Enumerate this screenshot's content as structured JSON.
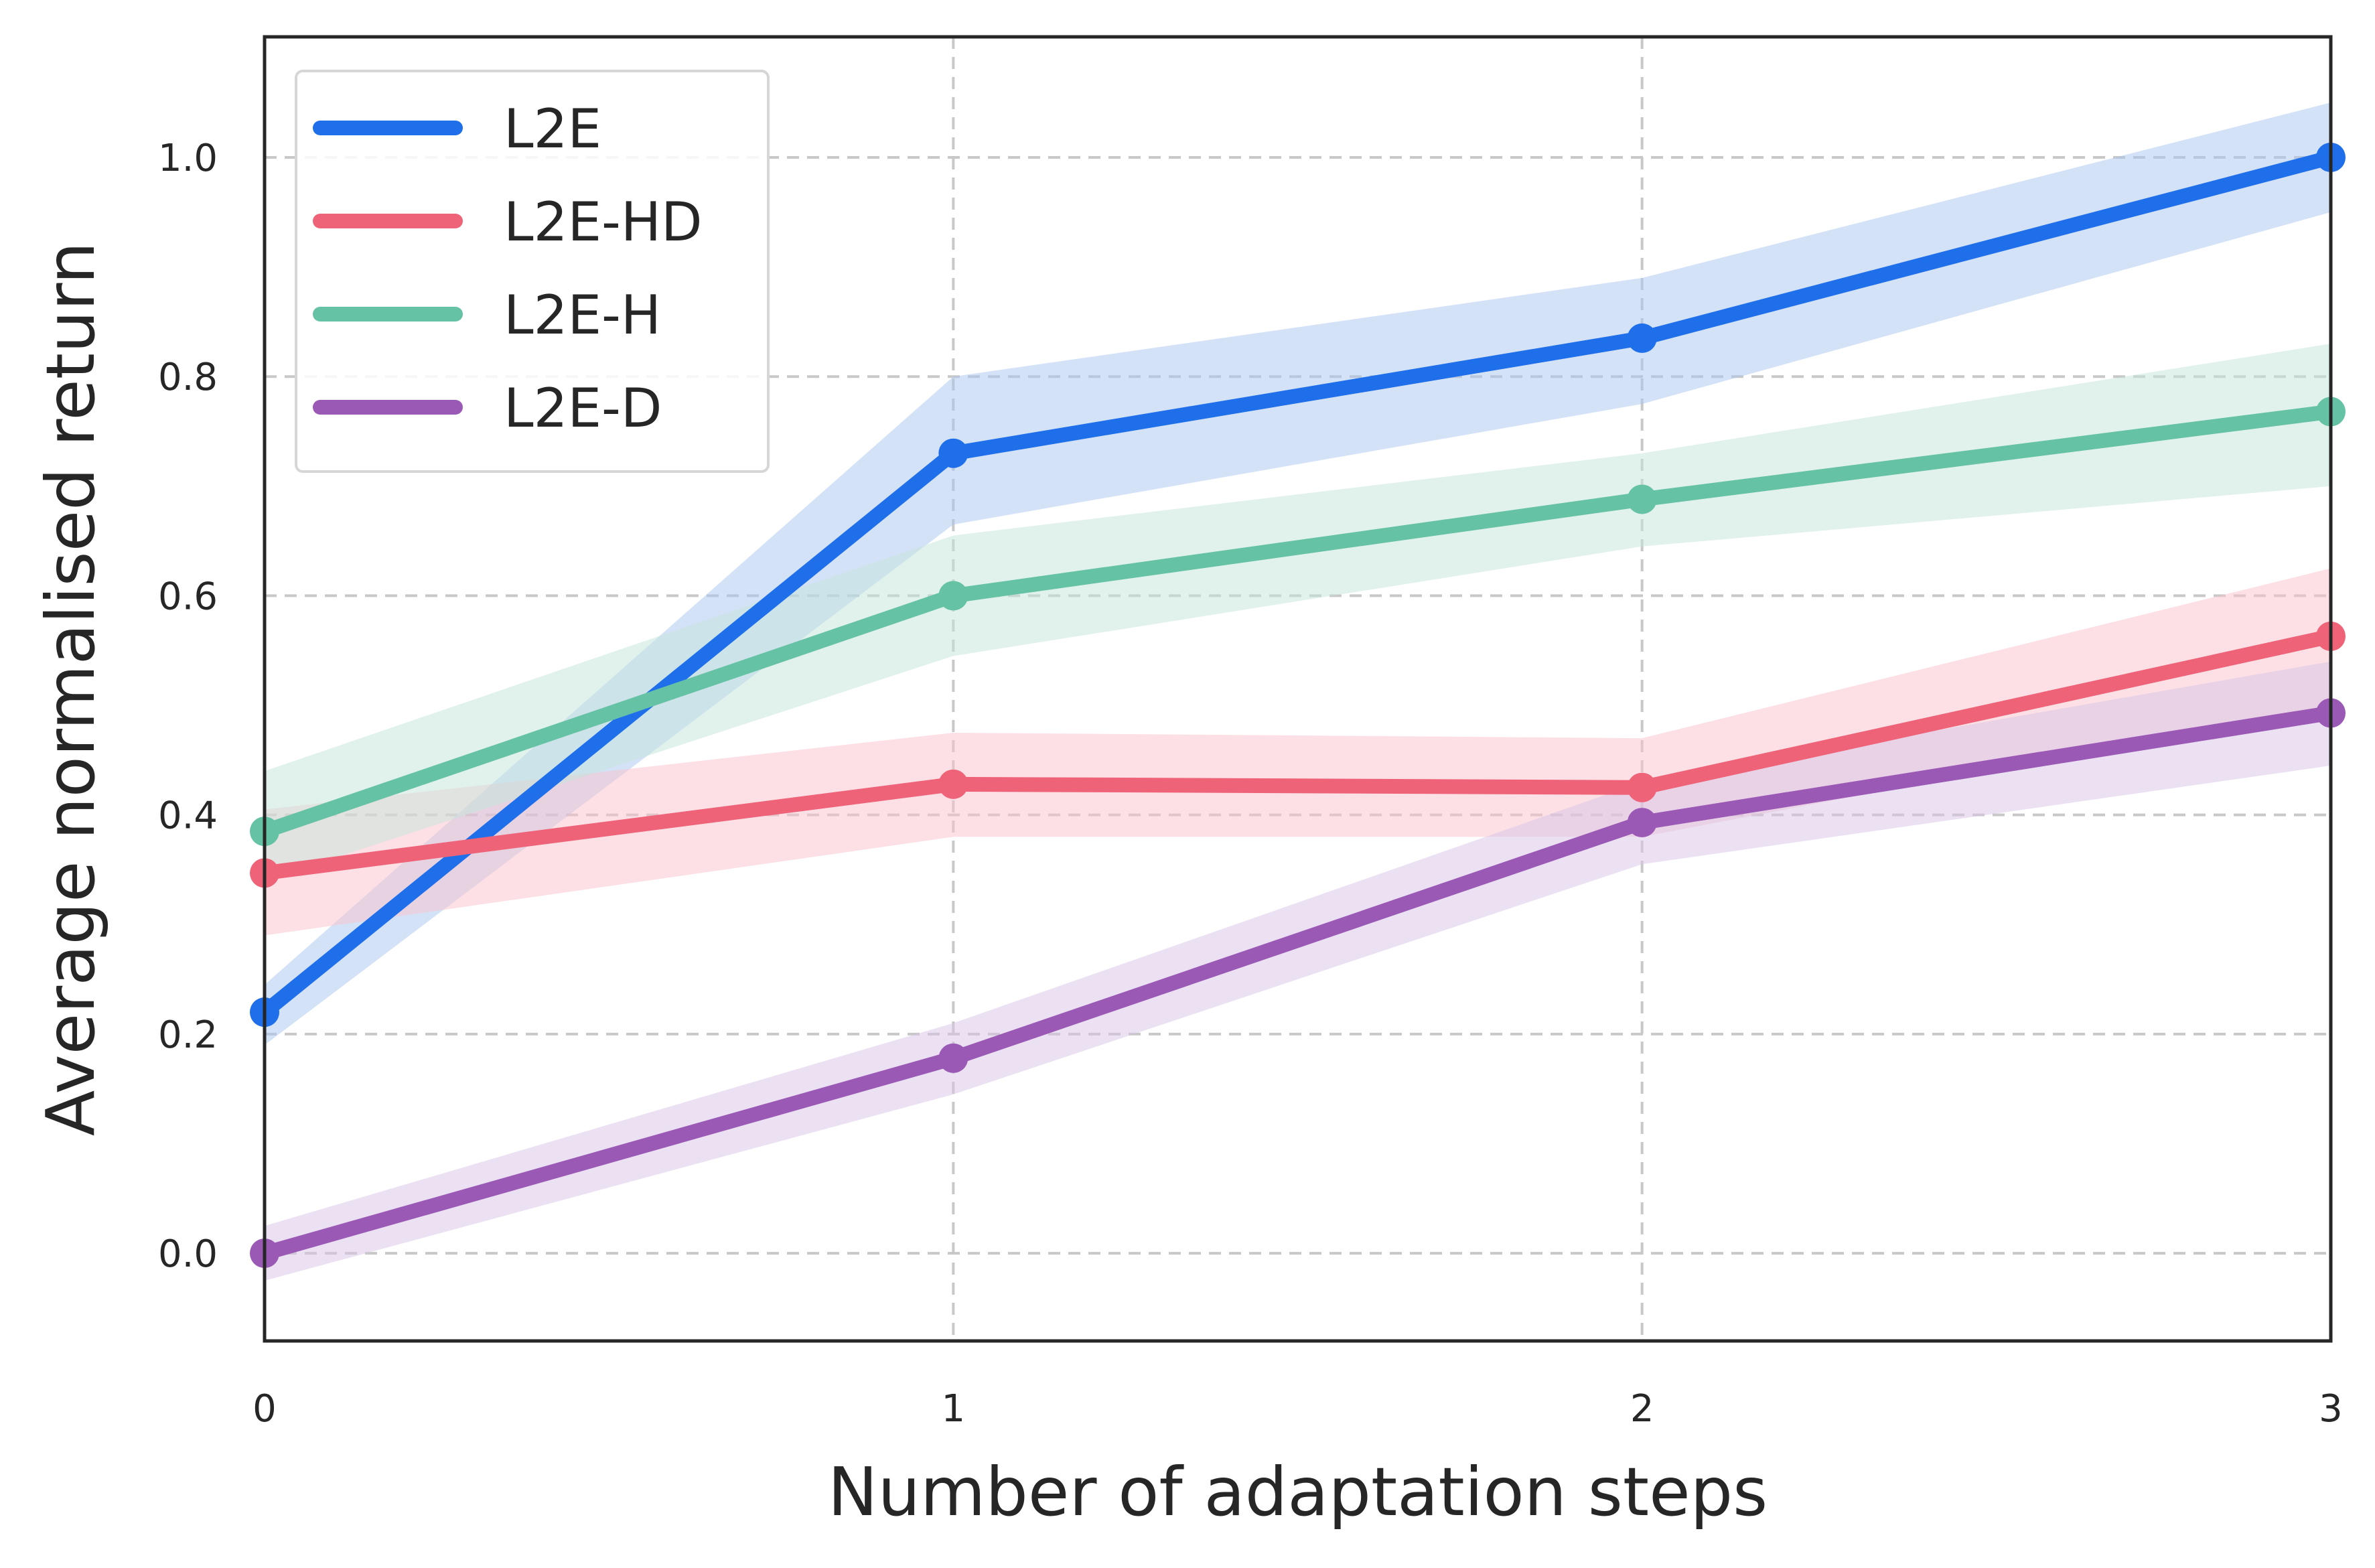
{
  "chart_data": {
    "type": "line",
    "title": "",
    "xlabel": "Number of adaptation steps",
    "ylabel": "Average normalised return",
    "x": [
      0,
      1,
      2,
      3
    ],
    "xlim": [
      0,
      3
    ],
    "ylim": [
      -0.08,
      1.11
    ],
    "xticks": [
      "0",
      "1",
      "2",
      "3"
    ],
    "yticks": [
      "0.0",
      "0.2",
      "0.4",
      "0.6",
      "0.8",
      "1.0"
    ],
    "grid": true,
    "legend_position": "top-left",
    "series": [
      {
        "name": "L2E",
        "color": "#1f6feb",
        "band_color": "#a9c6f2",
        "values": [
          0.22,
          0.73,
          0.835,
          1.0
        ],
        "lower": [
          0.19,
          0.665,
          0.775,
          0.95
        ],
        "upper": [
          0.245,
          0.8,
          0.89,
          1.05
        ]
      },
      {
        "name": "L2E-HD",
        "color": "#ef6379",
        "band_color": "#f9c2cb",
        "values": [
          0.347,
          0.428,
          0.425,
          0.563
        ],
        "lower": [
          0.29,
          0.38,
          0.38,
          0.5
        ],
        "upper": [
          0.405,
          0.475,
          0.47,
          0.625
        ]
      },
      {
        "name": "L2E-H",
        "color": "#66c2a5",
        "band_color": "#c4e6da",
        "values": [
          0.385,
          0.6,
          0.688,
          0.768
        ],
        "lower": [
          0.34,
          0.545,
          0.645,
          0.7
        ],
        "upper": [
          0.44,
          0.655,
          0.73,
          0.83
        ]
      },
      {
        "name": "L2E-D",
        "color": "#9b59b6",
        "band_color": "#d8c3e8",
        "values": [
          0.0,
          0.178,
          0.393,
          0.493
        ],
        "lower": [
          -0.025,
          0.145,
          0.355,
          0.445
        ],
        "upper": [
          0.025,
          0.21,
          0.43,
          0.54
        ]
      }
    ]
  }
}
